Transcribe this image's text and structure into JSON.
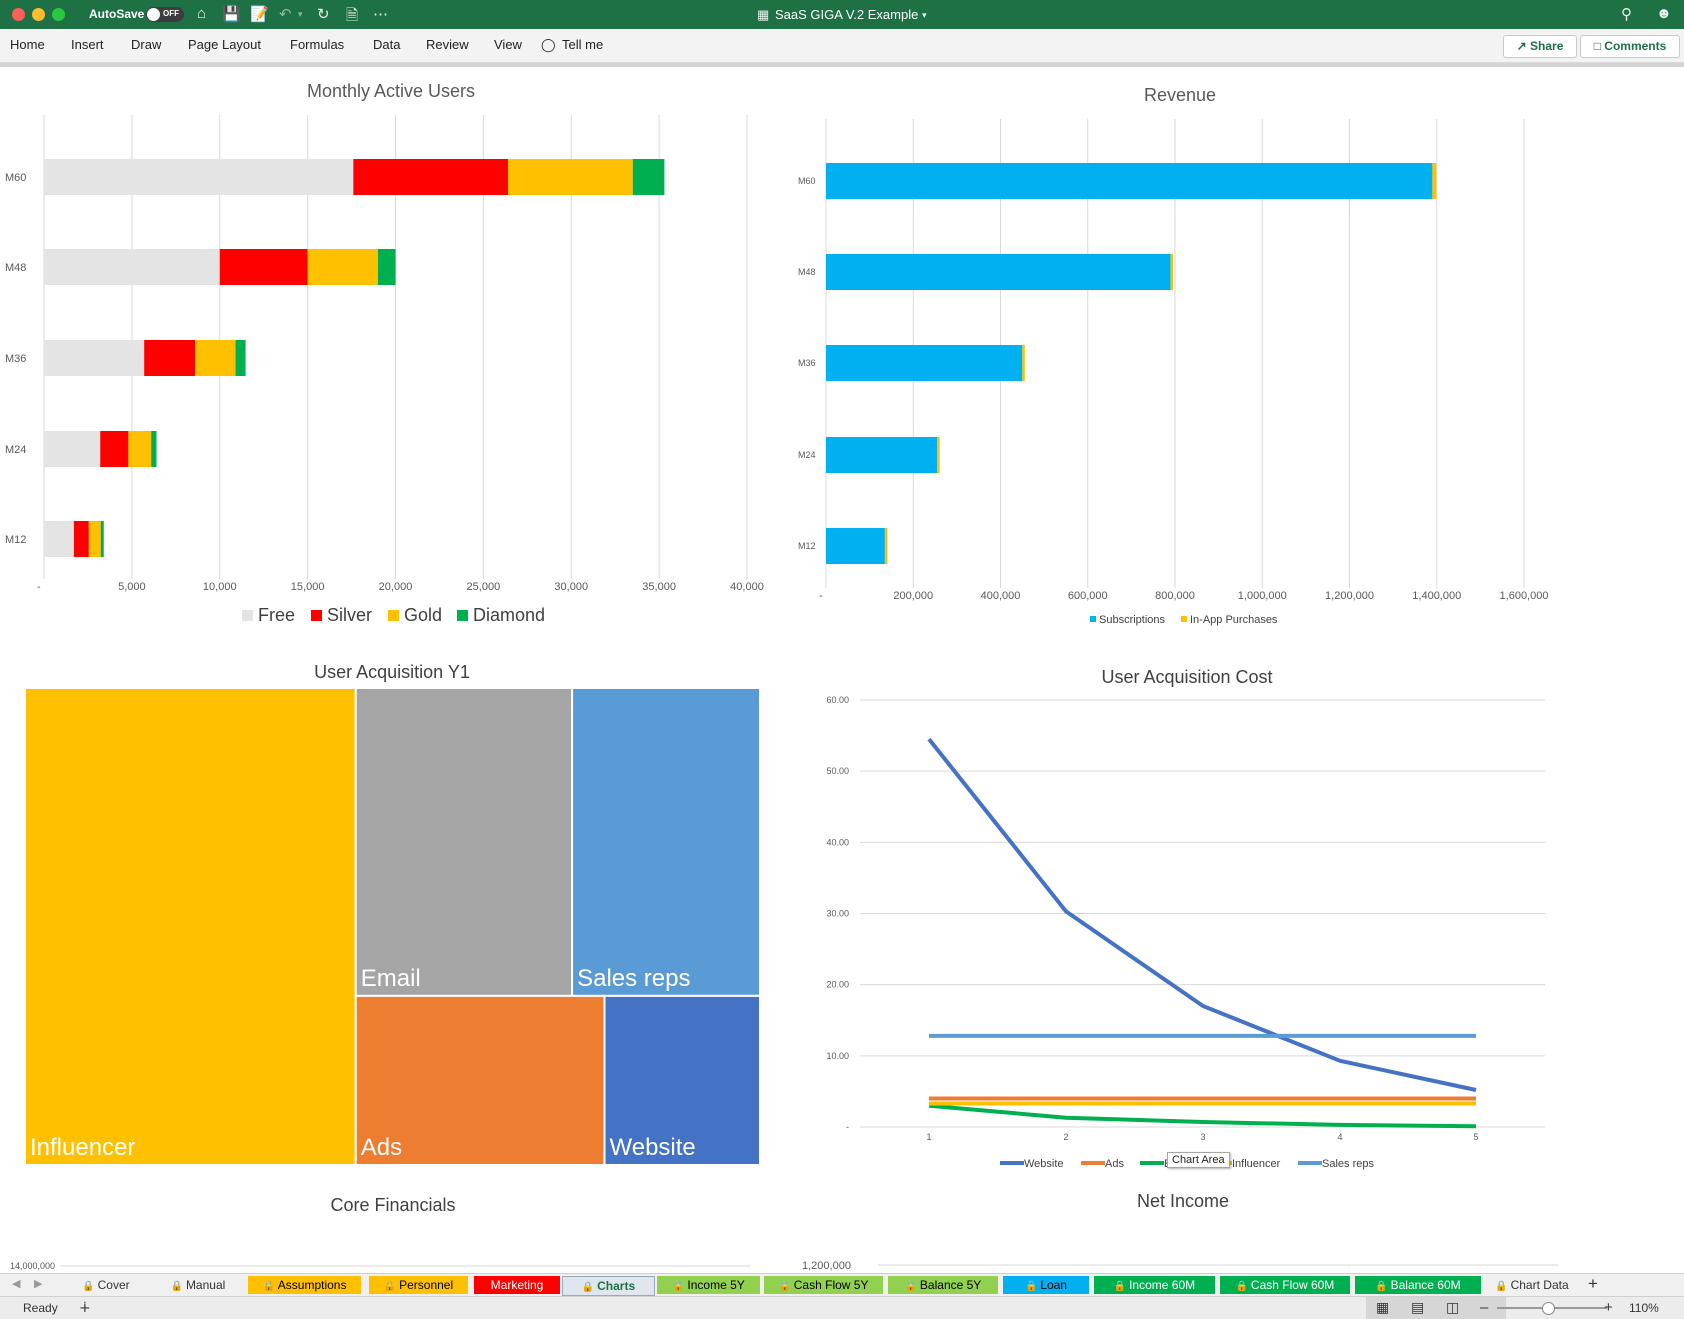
{
  "window": {
    "autosave_label": "AutoSave",
    "autosave_state": "OFF",
    "doc_title": "SaaS GIGA V.2 Example",
    "icons": [
      "home-icon",
      "save-icon",
      "save-as-icon",
      "undo-icon",
      "refresh-icon",
      "new-doc-icon",
      "more-icon",
      "search-icon",
      "account-icon"
    ]
  },
  "ribbon": {
    "menus": [
      "Home",
      "Insert",
      "Draw",
      "Page Layout",
      "Formulas",
      "Data",
      "Review",
      "View",
      "Tell me"
    ],
    "share_label": "Share",
    "comments_label": "Comments"
  },
  "colors": {
    "free": "#e4e4e4",
    "silver": "#ff0000",
    "gold": "#ffc000",
    "diamond": "#00b050",
    "subscriptions": "#00b0f0",
    "inapp": "#ffc000",
    "website": "#4472c4",
    "ads": "#ed7d31",
    "email": "#00b050",
    "influencer": "#ffc000",
    "sales_reps": "#5b9bd5",
    "tm_influencer": "#ffc000",
    "tm_email": "#a5a5a5",
    "tm_sales": "#5b9bd5",
    "tm_ads": "#ed7d31",
    "tm_website": "#4472c4",
    "excel_green": "#1e7145"
  },
  "chart_data": [
    {
      "type": "bar",
      "orientation": "horizontal",
      "stacked": true,
      "title": "Monthly Active Users",
      "categories": [
        "M60",
        "M48",
        "M36",
        "M24",
        "M12"
      ],
      "series": [
        {
          "name": "Free",
          "values": [
            17600,
            10000,
            5700,
            3200,
            1700
          ]
        },
        {
          "name": "Silver",
          "values": [
            8800,
            5000,
            2900,
            1600,
            850
          ]
        },
        {
          "name": "Gold",
          "values": [
            7100,
            4000,
            2300,
            1300,
            680
          ]
        },
        {
          "name": "Diamond",
          "values": [
            1800,
            1000,
            570,
            300,
            170
          ]
        }
      ],
      "x_ticks": [
        "-",
        "5,000",
        "10,000",
        "15,000",
        "20,000",
        "25,000",
        "30,000",
        "35,000",
        "40,000"
      ],
      "xlim": [
        0,
        40000
      ],
      "legend": "bottom",
      "grid": true
    },
    {
      "type": "bar",
      "orientation": "horizontal",
      "stacked": true,
      "title": "Revenue",
      "categories": [
        "M60",
        "M48",
        "M36",
        "M24",
        "M12"
      ],
      "series": [
        {
          "name": "Subscriptions",
          "values": [
            1390000,
            790000,
            450000,
            255000,
            135000
          ]
        },
        {
          "name": "In-App Purchases",
          "values": [
            9000,
            5000,
            3500,
            2500,
            1000
          ]
        }
      ],
      "x_ticks": [
        "-",
        "200,000",
        "400,000",
        "600,000",
        "800,000",
        "1,000,000",
        "1,200,000",
        "1,400,000",
        "1,600,000"
      ],
      "xlim": [
        0,
        1600000
      ],
      "legend": "bottom",
      "grid": true
    },
    {
      "type": "treemap",
      "title": "User Acquisition Y1",
      "items": [
        {
          "name": "Influencer",
          "value": 45
        },
        {
          "name": "Email",
          "value": 19
        },
        {
          "name": "Sales reps",
          "value": 16.5
        },
        {
          "name": "Ads",
          "value": 12
        },
        {
          "name": "Website",
          "value": 7.5
        }
      ]
    },
    {
      "type": "line",
      "title": "User Acquisition Cost",
      "x": [
        1,
        2,
        3,
        4,
        5
      ],
      "series": [
        {
          "name": "Website",
          "values": [
            54.5,
            30.3,
            17,
            9.3,
            5.2
          ]
        },
        {
          "name": "Ads",
          "values": [
            4,
            4,
            4,
            4,
            4
          ]
        },
        {
          "name": "Email",
          "values": [
            3,
            1.3,
            0.7,
            0.3,
            0.1
          ]
        },
        {
          "name": "Influencer",
          "values": [
            3.3,
            3.3,
            3.3,
            3.3,
            3.3
          ]
        },
        {
          "name": "Sales reps",
          "values": [
            12.8,
            12.8,
            12.8,
            12.8,
            12.8
          ]
        }
      ],
      "y_ticks": [
        "-",
        "10.00",
        "20.00",
        "30.00",
        "40.00",
        "50.00",
        "60.00"
      ],
      "ylim": [
        0,
        60
      ],
      "legend": "bottom",
      "grid": true
    },
    {
      "type": "bar",
      "title": "Core Financials",
      "y_ticks_visible": [
        "14,000,000"
      ]
    },
    {
      "type": "bar",
      "title": "Net Income",
      "y_ticks_visible": [
        "1,200,000"
      ]
    }
  ],
  "tooltip": "Chart Area",
  "tabs": [
    {
      "label": "Cover",
      "locked": true,
      "bg": "#f0f0f0",
      "fg": "#333333"
    },
    {
      "label": "Manual",
      "locked": true,
      "bg": "#f0f0f0",
      "fg": "#333333"
    },
    {
      "label": "Assumptions",
      "locked": true,
      "bg": "#ffc000",
      "fg": "#000000"
    },
    {
      "label": "Personnel",
      "locked": true,
      "bg": "#ffc000",
      "fg": "#000000"
    },
    {
      "label": "Marketing",
      "locked": false,
      "bg": "#ff0000",
      "fg": "#ffffff"
    },
    {
      "label": "Charts",
      "locked": true,
      "bg": "#dfe6ee",
      "fg": "#1e7145",
      "active": true
    },
    {
      "label": "Income 5Y",
      "locked": true,
      "bg": "#92d050",
      "fg": "#000000"
    },
    {
      "label": "Cash Flow 5Y",
      "locked": true,
      "bg": "#92d050",
      "fg": "#000000"
    },
    {
      "label": "Balance 5Y",
      "locked": true,
      "bg": "#92d050",
      "fg": "#000000"
    },
    {
      "label": "Loan",
      "locked": true,
      "bg": "#00b0f0",
      "fg": "#000000"
    },
    {
      "label": "Income 60M",
      "locked": true,
      "bg": "#00b050",
      "fg": "#ffffff"
    },
    {
      "label": "Cash Flow 60M",
      "locked": true,
      "bg": "#00b050",
      "fg": "#ffffff"
    },
    {
      "label": "Balance 60M",
      "locked": true,
      "bg": "#00b050",
      "fg": "#ffffff"
    },
    {
      "label": "Chart Data",
      "locked": true,
      "bg": "#f0f0f0",
      "fg": "#333333"
    }
  ],
  "status": {
    "ready": "Ready",
    "zoom": "110%"
  }
}
